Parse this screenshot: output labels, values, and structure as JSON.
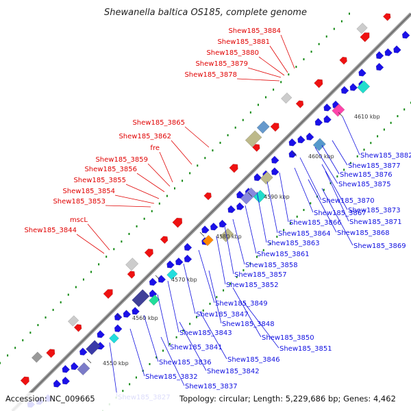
{
  "title": "Shewanella baltica OS185, complete genome",
  "footer": {
    "accession": "Accession: NC_009665",
    "summary": "Topology: circular; Length: 5,229,686 bp; Genes: 4,462"
  },
  "colors": {
    "backbone": "#8a8a8a",
    "plus_strand_label": "#e00000",
    "minus_strand_label": "#1010e0",
    "skew": "#118811",
    "tick_labels": "#333333"
  },
  "ticks": [
    "4550 kbp",
    "4560 kbp",
    "4570 kbp",
    "4580 kbp",
    "4590 kbp",
    "4600 kbp",
    "4610 kbp"
  ],
  "labels_red": [
    "Shew185_3884",
    "Shew185_3881",
    "Shew185_3880",
    "Shew185_3879",
    "Shew185_3878",
    "Shew185_3865",
    "Shew185_3862",
    "fre",
    "Shew185_3859",
    "Shew185_3856",
    "Shew185_3855",
    "Shew185_3854",
    "Shew185_3853",
    "mscL",
    "Shew185_3844"
  ],
  "labels_blue": [
    "Shew185_3882",
    "Shew185_3877",
    "Shew185_3876",
    "Shew185_3875",
    "Shew185_3870",
    "Shew185_3873",
    "Shew185_3867",
    "Shew185_3871",
    "Shew185_3866",
    "Shew185_3868",
    "Shew185_3864",
    "Shew185_3869",
    "Shew185_3863",
    "Shew185_3861",
    "Shew185_3858",
    "Shew185_3857",
    "Shew185_3852",
    "Shew185_3849",
    "Shew185_3847",
    "Shew185_3848",
    "Shew185_3843",
    "Shew185_3850",
    "Shew185_3841",
    "Shew185_3851",
    "Shew185_3846",
    "Shew185_3836",
    "Shew185_3842",
    "Shew185_3832",
    "Shew185_3837",
    "Shew185_3827"
  ]
}
